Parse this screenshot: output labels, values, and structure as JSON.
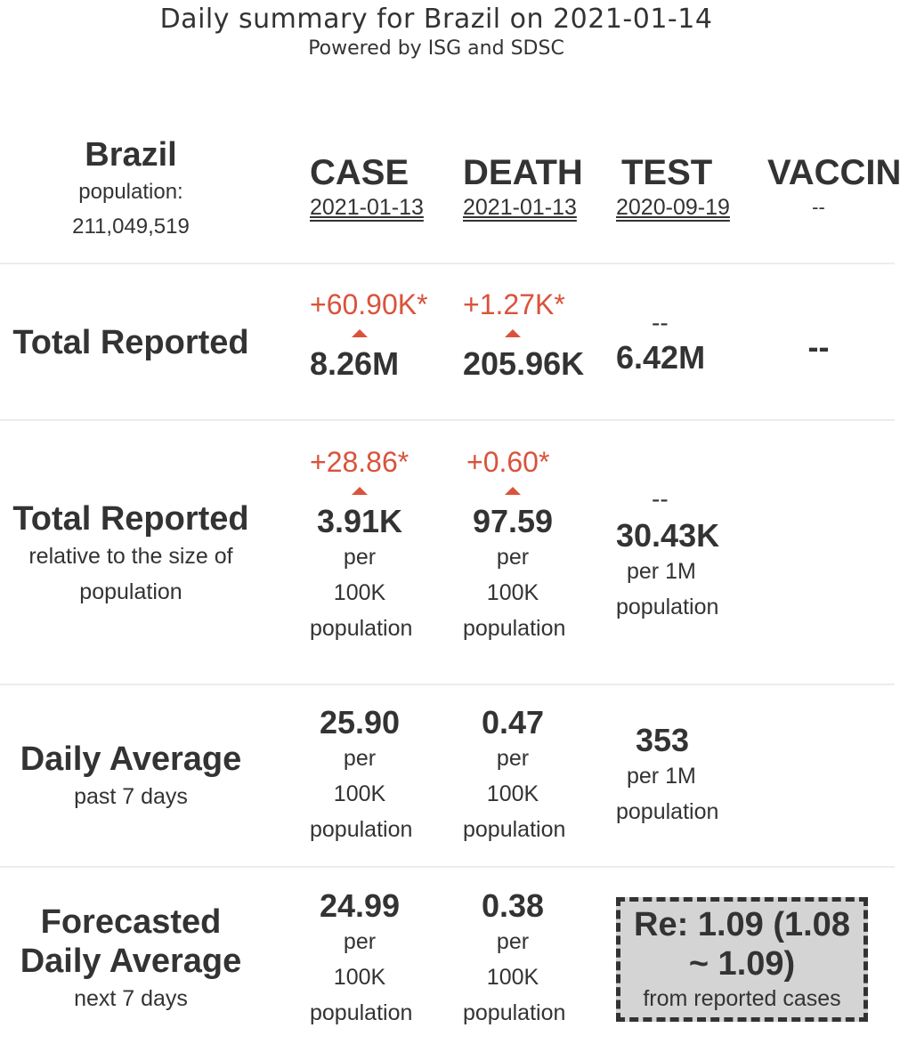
{
  "header": {
    "title": "Daily summary for Brazil on 2021-01-14",
    "subtitle": "Powered by ISG and SDSC"
  },
  "country": {
    "name": "Brazil",
    "population_label": "population:",
    "population": "211,049,519"
  },
  "columns": {
    "case": {
      "title": "CASE",
      "date": "2021-01-13"
    },
    "death": {
      "title": "DEATH",
      "date": "2021-01-13"
    },
    "test": {
      "title": "TEST",
      "date": "2020-09-19"
    },
    "vaccine": {
      "title": "VACCIN",
      "date": "--"
    }
  },
  "rows": {
    "total": {
      "label": "Total Reported",
      "case": {
        "delta": "+60.90K*",
        "value": "8.26M"
      },
      "death": {
        "delta": "+1.27K*",
        "value": "205.96K"
      },
      "test": {
        "delta": "--",
        "value": "6.42M"
      },
      "vaccine": {
        "value": "--"
      }
    },
    "relative": {
      "label": "Total Reported",
      "sub1": "relative to the size of",
      "sub2": "population",
      "case": {
        "delta": "+28.86*",
        "value": "3.91K",
        "u1": "per",
        "u2": "100K",
        "u3": "population"
      },
      "death": {
        "delta": "+0.60*",
        "value": "97.59",
        "u1": "per",
        "u2": "100K",
        "u3": "population"
      },
      "test": {
        "delta": "--",
        "value": "30.43K",
        "u1": "per 1M",
        "u2": "population"
      }
    },
    "daily": {
      "label": "Daily Average",
      "sub": "past 7 days",
      "case": {
        "value": "25.90",
        "u1": "per",
        "u2": "100K",
        "u3": "population"
      },
      "death": {
        "value": "0.47",
        "u1": "per",
        "u2": "100K",
        "u3": "population"
      },
      "test": {
        "value": "353",
        "u1": "per 1M",
        "u2": "population"
      }
    },
    "forecast": {
      "label1": "Forecasted",
      "label2": "Daily Average",
      "sub": "next 7 days",
      "case": {
        "value": "24.99",
        "u1": "per",
        "u2": "100K",
        "u3": "population"
      },
      "death": {
        "value": "0.38",
        "u1": "per",
        "u2": "100K",
        "u3": "population"
      },
      "re": {
        "line1": "Re: 1.09 (1.08",
        "line2": "~ 1.09)",
        "source": "from reported cases"
      }
    }
  },
  "colors": {
    "increase": "#d9533c",
    "text": "#333333",
    "re_box": "#d4d4d4"
  }
}
